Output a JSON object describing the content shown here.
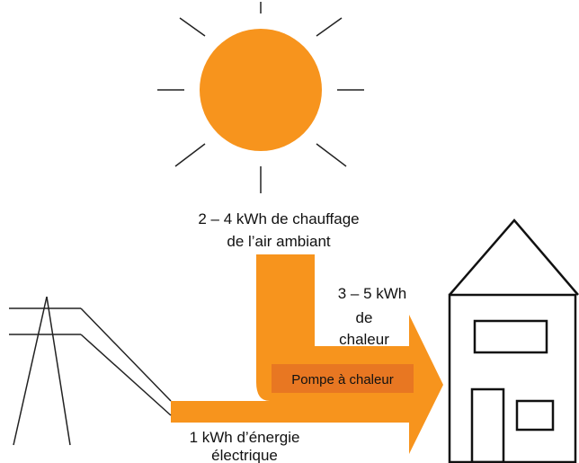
{
  "source_label": [
    "2 – 4 kWh de chauffage",
    "de l’air ambiant"
  ],
  "output_label": [
    "3 – 5 kWh",
    "de",
    "chaleur"
  ],
  "pump_label": "Pompe à chaleur",
  "input_label": [
    "1 kWh d’énergie",
    "électrique"
  ]
}
